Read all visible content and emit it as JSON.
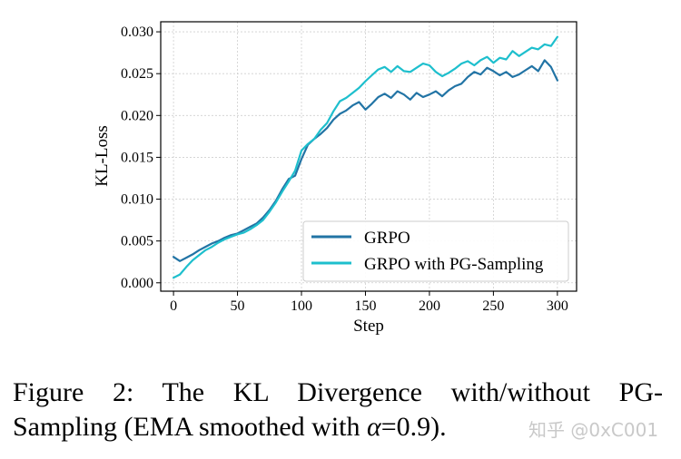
{
  "chart_data": {
    "type": "line",
    "xlabel": "Step",
    "ylabel": "KL-Loss",
    "xlim": [
      -10,
      315
    ],
    "ylim": [
      -0.001,
      0.0312
    ],
    "x_ticks": [
      0,
      50,
      100,
      150,
      200,
      250,
      300
    ],
    "x_tick_labels": [
      "0",
      "50",
      "100",
      "150",
      "200",
      "250",
      "300"
    ],
    "y_ticks": [
      0.0,
      0.005,
      0.01,
      0.015,
      0.02,
      0.025,
      0.03
    ],
    "y_tick_labels": [
      "0.000",
      "0.005",
      "0.010",
      "0.015",
      "0.020",
      "0.025",
      "0.030"
    ],
    "grid": true,
    "legend_position": "lower-right",
    "series": [
      {
        "name": "GRPO",
        "color": "#2274a5",
        "x": [
          0,
          5,
          10,
          15,
          20,
          25,
          30,
          35,
          40,
          45,
          50,
          55,
          60,
          65,
          70,
          75,
          80,
          85,
          90,
          95,
          100,
          105,
          110,
          115,
          120,
          125,
          130,
          135,
          140,
          145,
          150,
          155,
          160,
          165,
          170,
          175,
          180,
          185,
          190,
          195,
          200,
          205,
          210,
          215,
          220,
          225,
          230,
          235,
          240,
          245,
          250,
          255,
          260,
          265,
          270,
          275,
          280,
          285,
          290,
          295,
          300
        ],
        "values": [
          0.0031,
          0.0026,
          0.003,
          0.0034,
          0.0039,
          0.0043,
          0.0047,
          0.005,
          0.0054,
          0.0057,
          0.0059,
          0.0063,
          0.0067,
          0.0071,
          0.0078,
          0.0087,
          0.0098,
          0.0112,
          0.0124,
          0.0128,
          0.0148,
          0.0165,
          0.0172,
          0.0178,
          0.0185,
          0.0195,
          0.0202,
          0.0206,
          0.0212,
          0.0216,
          0.0207,
          0.0214,
          0.0222,
          0.0226,
          0.0221,
          0.0229,
          0.0225,
          0.0219,
          0.0227,
          0.0222,
          0.0225,
          0.0229,
          0.0223,
          0.023,
          0.0235,
          0.0238,
          0.0246,
          0.0252,
          0.0249,
          0.0257,
          0.0253,
          0.0248,
          0.0252,
          0.0246,
          0.0249,
          0.0254,
          0.0259,
          0.0253,
          0.0266,
          0.0258,
          0.0242
        ]
      },
      {
        "name": "GRPO with PG-Sampling",
        "color": "#1ebfcd",
        "x": [
          0,
          5,
          10,
          15,
          20,
          25,
          30,
          35,
          40,
          45,
          50,
          55,
          60,
          65,
          70,
          75,
          80,
          85,
          90,
          95,
          100,
          105,
          110,
          115,
          120,
          125,
          130,
          135,
          140,
          145,
          150,
          155,
          160,
          165,
          170,
          175,
          180,
          185,
          190,
          195,
          200,
          205,
          210,
          215,
          220,
          225,
          230,
          235,
          240,
          245,
          250,
          255,
          260,
          265,
          270,
          275,
          280,
          285,
          290,
          295,
          300
        ],
        "values": [
          0.0006,
          0.001,
          0.0019,
          0.0027,
          0.0033,
          0.0039,
          0.0043,
          0.0048,
          0.0052,
          0.0055,
          0.0058,
          0.006,
          0.0064,
          0.0069,
          0.0075,
          0.0085,
          0.0096,
          0.0109,
          0.0121,
          0.0134,
          0.0158,
          0.0166,
          0.0172,
          0.0183,
          0.0191,
          0.0205,
          0.0217,
          0.0221,
          0.0227,
          0.0233,
          0.0241,
          0.0248,
          0.0255,
          0.0258,
          0.0252,
          0.0259,
          0.0253,
          0.0252,
          0.0257,
          0.0262,
          0.026,
          0.0252,
          0.0247,
          0.0251,
          0.0256,
          0.0262,
          0.0265,
          0.026,
          0.0266,
          0.027,
          0.0263,
          0.0269,
          0.0267,
          0.0277,
          0.0271,
          0.0276,
          0.0281,
          0.0279,
          0.0285,
          0.0283,
          0.0294
        ]
      }
    ]
  },
  "caption": {
    "line1": "Figure 2:  The KL Divergence with/without PG-",
    "line2_start": "Sampling (EMA smoothed with ",
    "alpha_symbol": "α",
    "line2_end": "=0.9)."
  },
  "watermark": "知乎 @0xC001"
}
